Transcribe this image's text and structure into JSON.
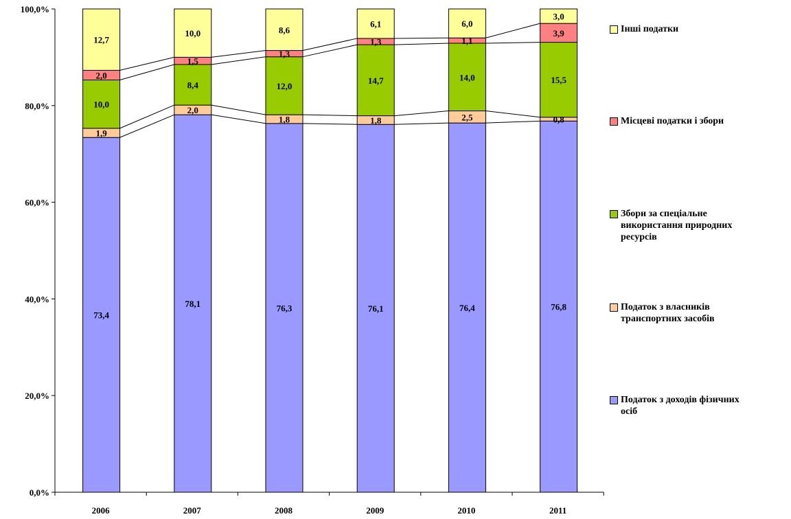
{
  "chart_data": {
    "type": "bar",
    "stacked": true,
    "percent": true,
    "categories": [
      "2006",
      "2007",
      "2008",
      "2009",
      "2010",
      "2011"
    ],
    "y_ticks": [
      "0,0%",
      "20,0%",
      "40,0%",
      "60,0%",
      "80,0%",
      "100,0%"
    ],
    "ylim": [
      0,
      100
    ],
    "legend_position": "right",
    "grid": false,
    "series": [
      {
        "name": "Податок з доходів фізичних осіб",
        "color": "#9999ff",
        "values": [
          73.4,
          78.1,
          76.3,
          76.1,
          76.4,
          76.8
        ],
        "labels": [
          "73,4",
          "78,1",
          "76,3",
          "76,1",
          "76,4",
          "76,8"
        ]
      },
      {
        "name": "Податок з власників транспортних засобів",
        "color": "#ffcc99",
        "values": [
          1.9,
          2.0,
          1.8,
          1.8,
          2.5,
          0.8
        ],
        "labels": [
          "1,9",
          "2,0",
          "1,8",
          "1,8",
          "2,5",
          "0,8"
        ]
      },
      {
        "name": "Збори за спеціальне використання природних ресурсів",
        "color": "#99cc00",
        "values": [
          10.0,
          8.4,
          12.0,
          14.7,
          14.0,
          15.5
        ],
        "labels": [
          "10,0",
          "8,4",
          "12,0",
          "14,7",
          "14,0",
          "15,5"
        ]
      },
      {
        "name": "Місцеві податки і збори",
        "color": "#ff8080",
        "values": [
          2.0,
          1.5,
          1.3,
          1.3,
          1.1,
          3.9
        ],
        "labels": [
          "2,0",
          "1,5",
          "1,3",
          "1,3",
          "1,1",
          "3,9"
        ]
      },
      {
        "name": "Інші податки",
        "color": "#ffff99",
        "values": [
          12.7,
          10.0,
          8.6,
          6.1,
          6.0,
          3.0
        ],
        "labels": [
          "12,7",
          "10,0",
          "8,6",
          "6,1",
          "6,0",
          "3,0"
        ]
      }
    ]
  },
  "legend": {
    "items": [
      {
        "lines": [
          "Інші податки"
        ],
        "color": "#ffff99"
      },
      {
        "lines": [
          "Місцеві податки і збори"
        ],
        "color": "#ff8080"
      },
      {
        "lines": [
          "Збори за спеціальне",
          "використання природних",
          "ресурсів"
        ],
        "color": "#99cc00"
      },
      {
        "lines": [
          "Податок з власників",
          "транспортних засобів"
        ],
        "color": "#ffcc99"
      },
      {
        "lines": [
          "Податок з доходів фізичних",
          "осіб"
        ],
        "color": "#9999ff"
      }
    ]
  }
}
